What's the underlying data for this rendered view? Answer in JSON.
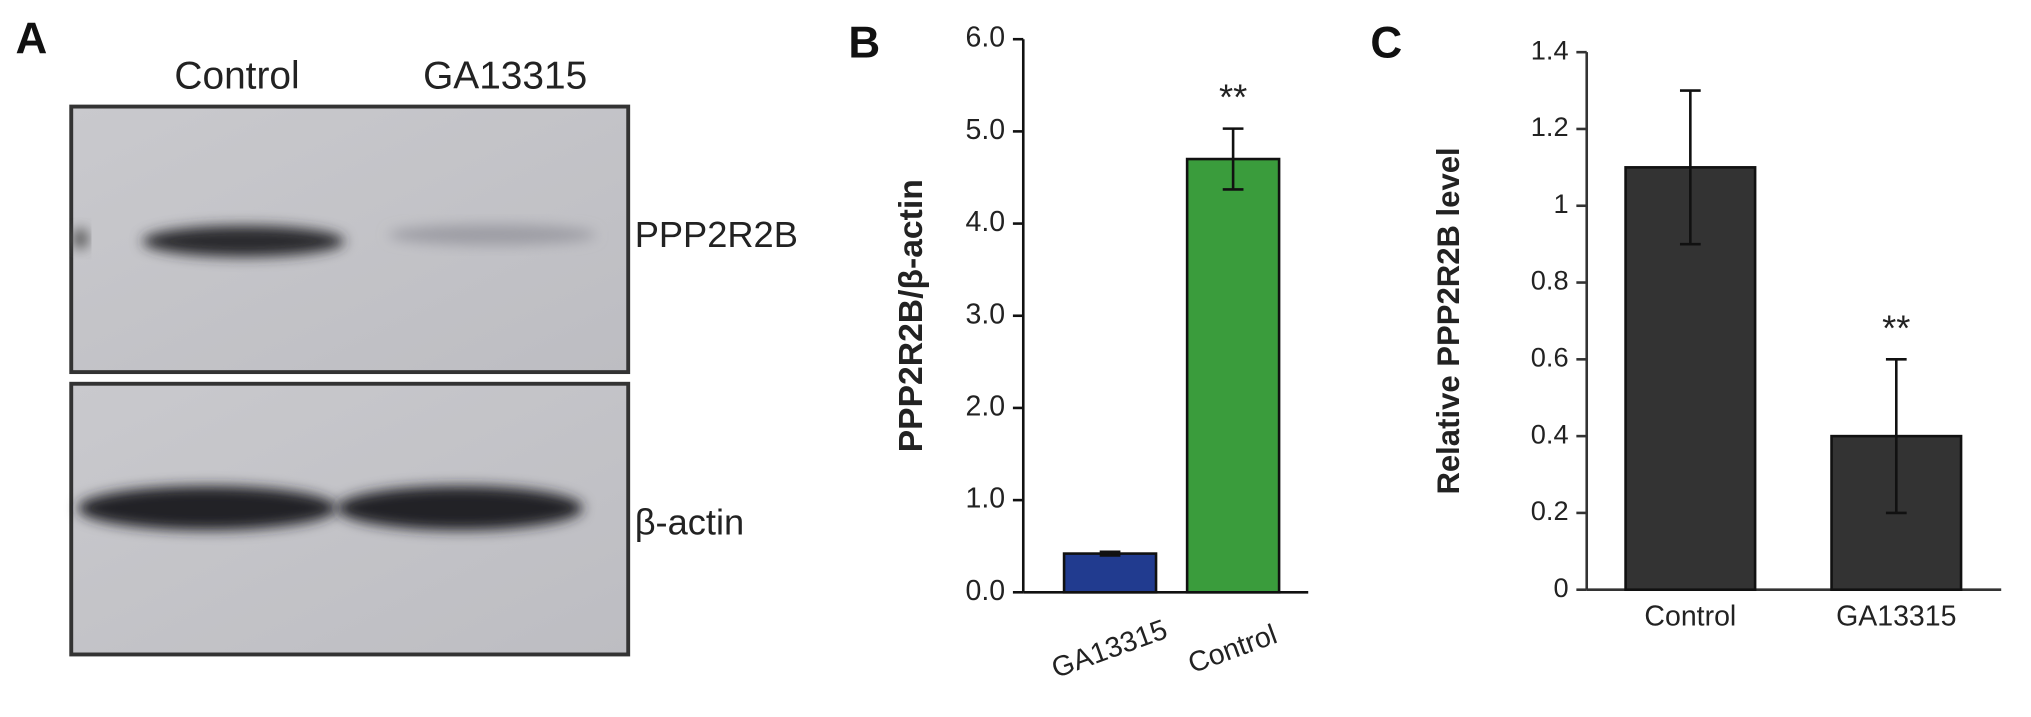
{
  "blot": {
    "panel": "A",
    "lanes": [
      "Control",
      "GA13315"
    ],
    "rows": [
      "PPP2R2B",
      "β-actin"
    ]
  },
  "chart_data": [
    {
      "type": "bar",
      "panel": "B",
      "y_label": "PPP2R2B/β-actin",
      "categories": [
        "GA13315",
        "Control"
      ],
      "series": [
        {
          "values": [
            0.42,
            4.7
          ],
          "errors": [
            0.02,
            0.33
          ],
          "colors": [
            "#213b8f",
            "#3a9c3c"
          ]
        }
      ],
      "annotation": "**",
      "ylim": [
        0,
        6
      ],
      "yticks": [
        {
          "value": 0,
          "label": "0.0"
        },
        {
          "value": 1,
          "label": "1.0"
        },
        {
          "value": 2,
          "label": "2.0"
        },
        {
          "value": 3,
          "label": "3.0"
        },
        {
          "value": 4,
          "label": "4.0"
        },
        {
          "value": 5,
          "label": "5.0"
        },
        {
          "value": 6,
          "label": "6.0"
        }
      ]
    },
    {
      "type": "bar",
      "panel": "C",
      "y_label": "Relative PPP2R2B level",
      "categories": [
        "Control",
        "GA13315"
      ],
      "series": [
        {
          "values": [
            1.1,
            0.4
          ],
          "errors": [
            0.2,
            0.2
          ],
          "colors": [
            "#333333",
            "#333333"
          ]
        }
      ],
      "annotation": "**",
      "ylim": [
        0,
        1.4
      ],
      "yticks": [
        0,
        0.2,
        0.4,
        0.6,
        0.8,
        1,
        1.2,
        1.4
      ]
    }
  ]
}
